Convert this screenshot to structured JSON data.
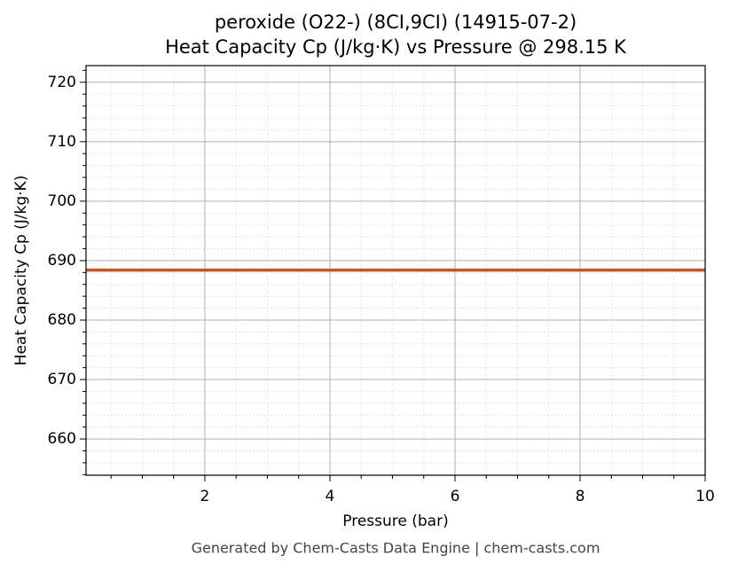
{
  "chart_data": {
    "type": "line",
    "title": [
      "peroxide (O22-) (8CI,9CI) (14915-07-2)",
      "Heat Capacity Cp (J/kg·K) vs Pressure @ 298.15 K"
    ],
    "xlabel": "Pressure (bar)",
    "ylabel": "Heat Capacity Cp (J/kg·K)",
    "x": [
      0.1,
      10
    ],
    "series": [
      {
        "name": "Cp",
        "color": "#c8552a",
        "values": [
          688.4,
          688.4
        ]
      }
    ],
    "xlim": [
      0.1,
      10
    ],
    "ylim": [
      653.9,
      722.8
    ],
    "xticks": [
      2,
      4,
      6,
      8,
      10
    ],
    "yticks": [
      660,
      670,
      680,
      690,
      700,
      710,
      720
    ],
    "xminorticks": [
      0.5,
      1,
      1.5,
      2.5,
      3,
      3.5,
      4.5,
      5,
      5.5,
      6.5,
      7,
      7.5,
      8.5,
      9,
      9.5
    ],
    "yminorticks": [
      654,
      656,
      658,
      662,
      664,
      666,
      668,
      672,
      674,
      676,
      678,
      682,
      684,
      686,
      688,
      692,
      694,
      696,
      698,
      702,
      704,
      706,
      708,
      712,
      714,
      716,
      718,
      722
    ],
    "grid": true,
    "footer": "Generated by Chem-Casts Data Engine | chem-casts.com"
  }
}
